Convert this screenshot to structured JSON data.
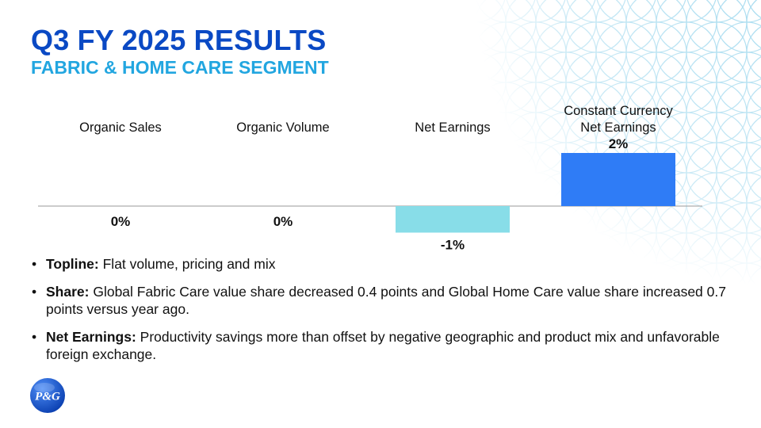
{
  "slide": {
    "title": "Q3 FY 2025 RESULTS",
    "subtitle": "FABRIC & HOME CARE SEGMENT",
    "logo_text": "P&G",
    "colors": {
      "title": "#0a49c4",
      "subtitle": "#22a6e0",
      "bar_negative": "#88dde8",
      "bar_positive": "#2f7cf6",
      "baseline": "#9a9a9a"
    }
  },
  "chart_data": {
    "type": "bar",
    "categories": [
      "Organic Sales",
      "Organic Volume",
      "Net Earnings",
      "Constant Currency Net Earnings"
    ],
    "category_lines": [
      [
        "Organic Sales"
      ],
      [
        "Organic Volume"
      ],
      [
        "Net Earnings"
      ],
      [
        "Constant Currency",
        "Net Earnings"
      ]
    ],
    "values": [
      0,
      0,
      -1,
      2
    ],
    "value_labels": [
      "0%",
      "0%",
      "-1%",
      "2%"
    ],
    "ylim": [
      -1,
      2
    ],
    "grid": false
  },
  "bullets": [
    {
      "bold": "Topline:",
      "text": " Flat volume, pricing and mix"
    },
    {
      "bold": "Share:",
      "text": " Global Fabric Care value share decreased 0.4 points and Global Home Care value share increased 0.7 points versus year ago."
    },
    {
      "bold": "Net Earnings:",
      "text": " Productivity savings more than offset by negative geographic and product mix and unfavorable foreign exchange."
    }
  ]
}
